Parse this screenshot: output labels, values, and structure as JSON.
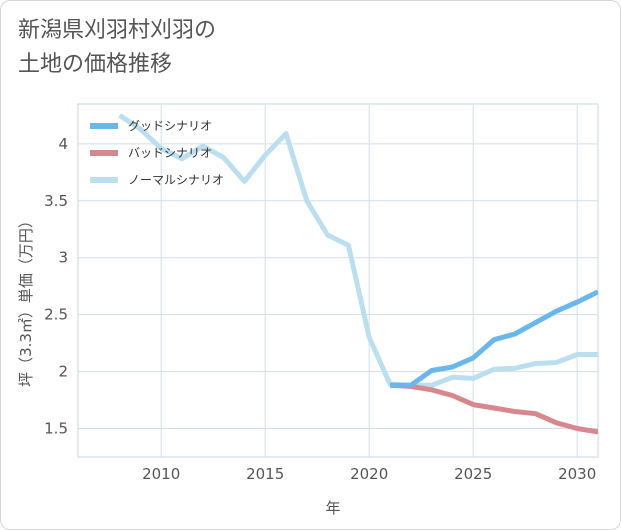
{
  "title": {
    "line1": "新潟県刈羽村刈羽の",
    "line2": "土地の価格推移"
  },
  "chart_data": {
    "type": "line",
    "title": "新潟県刈羽村刈羽の土地の価格推移",
    "xlabel": "年",
    "ylabel": "坪（3.3㎡）単価（万円）",
    "xlim": [
      2006,
      2031
    ],
    "ylim": [
      1.25,
      4.35
    ],
    "x_ticks": [
      2010,
      2015,
      2020,
      2025,
      2030
    ],
    "y_ticks": [
      1.5,
      2,
      2.5,
      3,
      3.5,
      4
    ],
    "y_tick_labels": [
      "1.5",
      "2",
      "2.5",
      "3",
      "3.5",
      "4"
    ],
    "x_tick_labels": [
      "2010",
      "2015",
      "2020",
      "2025",
      "2030"
    ],
    "grid": true,
    "legend_position": "top-left",
    "series": [
      {
        "name": "グッドシナリオ",
        "color": "#6ab7ee",
        "x": [
          2021,
          2022,
          2023,
          2024,
          2025,
          2026,
          2027,
          2028,
          2029,
          2030,
          2031
        ],
        "y": [
          1.88,
          1.88,
          2.01,
          2.04,
          2.12,
          2.28,
          2.33,
          2.43,
          2.53,
          2.61,
          2.7
        ]
      },
      {
        "name": "バッドシナリオ",
        "color": "#d9878f",
        "x": [
          2021,
          2022,
          2023,
          2024,
          2025,
          2026,
          2027,
          2028,
          2029,
          2030,
          2031
        ],
        "y": [
          1.88,
          1.87,
          1.84,
          1.79,
          1.71,
          1.68,
          1.65,
          1.63,
          1.55,
          1.5,
          1.47
        ]
      },
      {
        "name": "ノーマルシナリオ",
        "color": "#bcdff0",
        "x": [
          2008,
          2009,
          2010,
          2011,
          2012,
          2013,
          2014,
          2015,
          2016,
          2017,
          2018,
          2019,
          2020,
          2021,
          2022,
          2023,
          2024,
          2025,
          2026,
          2027,
          2028,
          2029,
          2030,
          2031
        ],
        "y": [
          4.25,
          4.13,
          3.96,
          3.87,
          3.98,
          3.88,
          3.67,
          3.9,
          4.09,
          3.5,
          3.2,
          3.11,
          2.3,
          1.89,
          1.88,
          1.88,
          1.95,
          1.94,
          2.02,
          2.03,
          2.07,
          2.08,
          2.15,
          2.15
        ]
      }
    ]
  }
}
